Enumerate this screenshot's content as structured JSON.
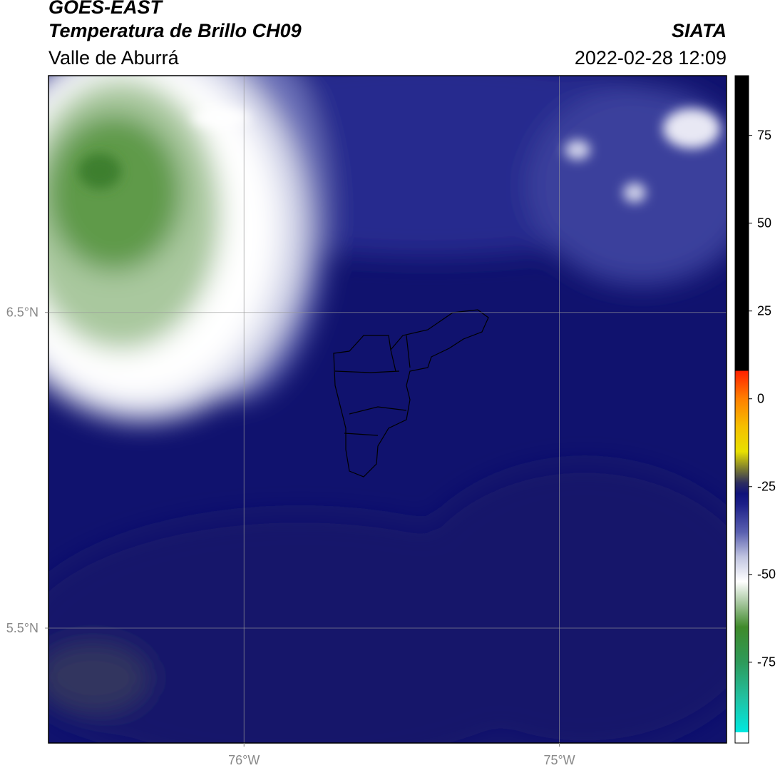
{
  "header": {
    "satellite": "GOES-EAST",
    "product": "Temperatura de Brillo CH09",
    "region": "Valle de Aburrá",
    "agency": "SIATA",
    "timestamp": "2022-02-28 12:09"
  },
  "map": {
    "xlim": [
      -76.62,
      -74.47
    ],
    "ylim": [
      5.136,
      7.25
    ],
    "xticks": [
      {
        "value": -76,
        "label": "76°W"
      },
      {
        "value": -75,
        "label": "75°W"
      }
    ],
    "yticks": [
      {
        "value": 6.5,
        "label": "6.5°N"
      },
      {
        "value": 5.5,
        "label": "5.5°N"
      }
    ],
    "grid": true
  },
  "colorbar": {
    "clim": [
      -98,
      92
    ],
    "ticks": [
      75,
      50,
      25,
      0,
      -25,
      -50,
      -75
    ],
    "stops": [
      {
        "value": -98,
        "color": "#ffffff"
      },
      {
        "value": -95,
        "color": "#ffffff"
      },
      {
        "value": -95,
        "color": "#00e8e0"
      },
      {
        "value": -85,
        "color": "#22c0a0"
      },
      {
        "value": -75,
        "color": "#2e9a5a"
      },
      {
        "value": -65,
        "color": "#3f8a2a"
      },
      {
        "value": -58,
        "color": "#a8c8a0"
      },
      {
        "value": -52,
        "color": "#ffffff"
      },
      {
        "value": -45,
        "color": "#c0c4e0"
      },
      {
        "value": -38,
        "color": "#5a60b0"
      },
      {
        "value": -30,
        "color": "#1c1f88"
      },
      {
        "value": -27,
        "color": "#10127a"
      },
      {
        "value": -24,
        "color": "#2c2c60"
      },
      {
        "value": -20,
        "color": "#7a7a30"
      },
      {
        "value": -15,
        "color": "#e8e000"
      },
      {
        "value": -8,
        "color": "#f5c000"
      },
      {
        "value": 0,
        "color": "#ff8000"
      },
      {
        "value": 8,
        "color": "#ff2000"
      },
      {
        "value": 8,
        "color": "#000000"
      },
      {
        "value": 92,
        "color": "#000000"
      }
    ]
  }
}
